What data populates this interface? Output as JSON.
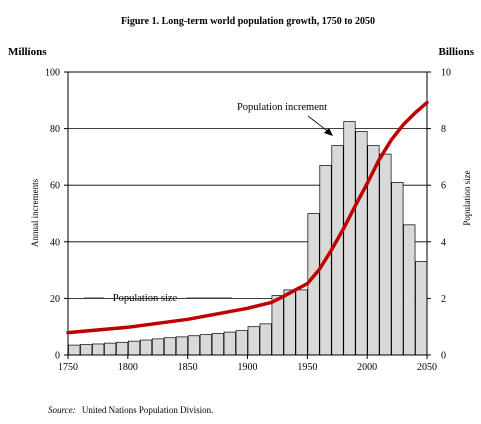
{
  "figure": {
    "title": "Figure 1.  Long-term world population growth, 1750 to 2050",
    "source_label": "Source:",
    "source_text": "United Nations Population Division."
  },
  "chart_data": {
    "type": "bar",
    "title": "Figure 1.  Long-term world population growth, 1750 to 2050",
    "left_axis": {
      "unit_label": "Millions",
      "label": "Annual increments",
      "ylim": [
        0,
        100
      ],
      "ticks": [
        "0",
        "20",
        "40",
        "60",
        "80",
        "100"
      ]
    },
    "right_axis": {
      "unit_label": "Billions",
      "label": "Population size",
      "ylim": [
        0,
        10
      ],
      "ticks": [
        "0",
        "2",
        "4",
        "6",
        "8",
        "10"
      ]
    },
    "x_axis": {
      "range": [
        1750,
        2050
      ],
      "ticks": [
        "1750",
        "1800",
        "1850",
        "1900",
        "1950",
        "2000",
        "2050"
      ]
    },
    "grid": "horizontal",
    "series": [
      {
        "name": "Population increment",
        "kind": "bar",
        "axis": "left",
        "x": [
          1750,
          1760,
          1770,
          1780,
          1790,
          1800,
          1810,
          1820,
          1830,
          1840,
          1850,
          1860,
          1870,
          1880,
          1890,
          1900,
          1910,
          1920,
          1930,
          1940,
          1950,
          1960,
          1970,
          1980,
          1990,
          2000,
          2010,
          2020,
          2030,
          2040
        ],
        "values": [
          3.5,
          3.7,
          3.9,
          4.2,
          4.5,
          4.9,
          5.3,
          5.7,
          6.1,
          6.4,
          6.8,
          7.2,
          7.6,
          8.1,
          8.6,
          10,
          11,
          21,
          23,
          23,
          50,
          67,
          74,
          82.5,
          79,
          74,
          71,
          61,
          46,
          33
        ]
      },
      {
        "name": "Population size",
        "kind": "line",
        "axis": "right",
        "x": [
          1750,
          1800,
          1850,
          1900,
          1920,
          1930,
          1940,
          1950,
          1960,
          1970,
          1980,
          1990,
          2000,
          2010,
          2020,
          2030,
          2040,
          2050
        ],
        "values": [
          0.79,
          0.98,
          1.26,
          1.65,
          1.86,
          2.07,
          2.3,
          2.52,
          3.02,
          3.7,
          4.44,
          5.27,
          6.06,
          6.9,
          7.59,
          8.13,
          8.55,
          8.92
        ]
      }
    ],
    "annotations": [
      "Population increment",
      "Population size"
    ]
  }
}
